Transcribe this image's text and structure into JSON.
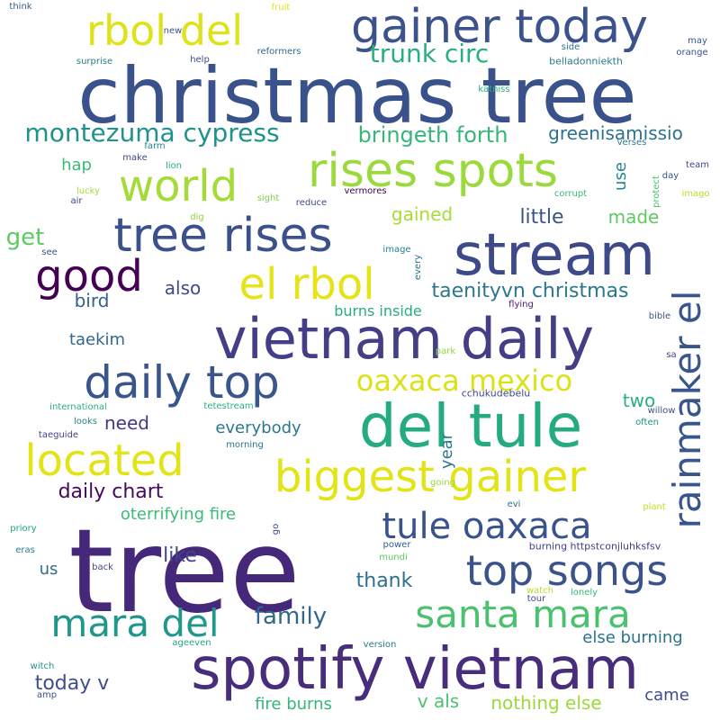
{
  "background_color": "#ffffff",
  "words": [
    {
      "text": "tree",
      "color": "#46287a"
    },
    {
      "text": "christmas tree",
      "color": "#3a528b"
    },
    {
      "text": "spotify vietnam",
      "color": "#472d7b"
    },
    {
      "text": "vietnam daily",
      "color": "#433e85"
    },
    {
      "text": "del tule",
      "color": "#25ab82"
    },
    {
      "text": "stream",
      "color": "#3e4989"
    },
    {
      "text": "gainer today",
      "color": "#3b528b"
    },
    {
      "text": "tree rises",
      "color": "#3b518b"
    },
    {
      "text": "rises spots",
      "color": "#9bd93c"
    },
    {
      "text": "daily top",
      "color": "#39558c"
    },
    {
      "text": "biggest gainer",
      "color": "#e2e418"
    },
    {
      "text": "top songs",
      "color": "#3a538b"
    },
    {
      "text": "located",
      "color": "#e2e418"
    },
    {
      "text": "santa mara",
      "color": "#4ac16d"
    },
    {
      "text": "mara del",
      "color": "#1f988b"
    },
    {
      "text": "rainmaker el",
      "color": "#39568c"
    },
    {
      "text": "tule oaxaca",
      "color": "#3a538b"
    },
    {
      "text": "world",
      "color": "#a5db36"
    },
    {
      "text": "good",
      "color": "#440154"
    },
    {
      "text": "el rbol",
      "color": "#e5e419"
    },
    {
      "text": "rbol del",
      "color": "#dde318"
    },
    {
      "text": "oaxaca mexico",
      "color": "#dae319"
    },
    {
      "text": "montezuma cypress",
      "color": "#20928c"
    },
    {
      "text": "taenityvn christmas",
      "color": "#2a788e"
    },
    {
      "text": "trunk circ",
      "color": "#29af7f"
    },
    {
      "text": "bringeth forth",
      "color": "#35b779"
    },
    {
      "text": "greenisamissio",
      "color": "#2d718e"
    },
    {
      "text": "daily chart",
      "color": "#46085c"
    },
    {
      "text": "family",
      "color": "#31668e"
    },
    {
      "text": "everybody",
      "color": "#2a788e"
    },
    {
      "text": "oterrifying fire",
      "color": "#3bbb75"
    },
    {
      "text": "today v",
      "color": "#3c4f8a"
    },
    {
      "text": "else burning",
      "color": "#2c728e"
    },
    {
      "text": "nothing else",
      "color": "#9dd93b"
    },
    {
      "text": "fire burns",
      "color": "#35b779"
    },
    {
      "text": "v als",
      "color": "#4ac16d"
    },
    {
      "text": "burns inside",
      "color": "#27ad81"
    },
    {
      "text": "little",
      "color": "#3b528b"
    },
    {
      "text": "gained",
      "color": "#a8db34"
    },
    {
      "text": "made",
      "color": "#5ec962"
    },
    {
      "text": "like",
      "color": "#414487"
    },
    {
      "text": "thank",
      "color": "#2e6f8e"
    },
    {
      "text": "need",
      "color": "#453882"
    },
    {
      "text": "get",
      "color": "#5ec962"
    },
    {
      "text": "also",
      "color": "#3e4a89"
    },
    {
      "text": "bird",
      "color": "#355f8d"
    },
    {
      "text": "taekim",
      "color": "#31688e"
    },
    {
      "text": "two",
      "color": "#29af7f"
    },
    {
      "text": "us",
      "color": "#2f6c8e"
    },
    {
      "text": "came",
      "color": "#3e4c8a"
    },
    {
      "text": "hap",
      "color": "#3bbb75"
    },
    {
      "text": "use",
      "color": "#25848e"
    },
    {
      "text": "year",
      "color": "#2a788e"
    },
    {
      "text": "burning httpstconjluhksfsv",
      "color": "#424086"
    },
    {
      "text": "cchukudebelu",
      "color": "#3e4989"
    },
    {
      "text": "belladonniekth",
      "color": "#2a788e"
    },
    {
      "text": "think",
      "color": "#355f8d"
    },
    {
      "text": "fruit",
      "color": "#e5e419"
    },
    {
      "text": "new",
      "color": "#3b528b"
    },
    {
      "text": "surprise",
      "color": "#277f8e"
    },
    {
      "text": "help",
      "color": "#3e4a89"
    },
    {
      "text": "reformers",
      "color": "#31688e"
    },
    {
      "text": "side",
      "color": "#2d718e"
    },
    {
      "text": "may",
      "color": "#3a538b"
    },
    {
      "text": "orange",
      "color": "#3b528b"
    },
    {
      "text": "katniss",
      "color": "#2ab07f"
    },
    {
      "text": "farm",
      "color": "#25848e"
    },
    {
      "text": "make",
      "color": "#3f4889"
    },
    {
      "text": "lion",
      "color": "#22a884"
    },
    {
      "text": "lucky",
      "color": "#a5db36"
    },
    {
      "text": "air",
      "color": "#414487"
    },
    {
      "text": "sight",
      "color": "#7ad151"
    },
    {
      "text": "reduce",
      "color": "#3e4a89"
    },
    {
      "text": "vermores",
      "color": "#440154"
    },
    {
      "text": "corrupt",
      "color": "#3bbb75"
    },
    {
      "text": "verses",
      "color": "#2a788e"
    },
    {
      "text": "day",
      "color": "#3b528b"
    },
    {
      "text": "team",
      "color": "#3e4989"
    },
    {
      "text": "imago",
      "color": "#b5de2b"
    },
    {
      "text": "protect",
      "color": "#4ac16d"
    },
    {
      "text": "dig",
      "color": "#90d743"
    },
    {
      "text": "see",
      "color": "#3a538b"
    },
    {
      "text": "image",
      "color": "#27808e"
    },
    {
      "text": "every",
      "color": "#2d718e"
    },
    {
      "text": "flying",
      "color": "#481b6d"
    },
    {
      "text": "park",
      "color": "#90d743"
    },
    {
      "text": "bible",
      "color": "#3b528b"
    },
    {
      "text": "sa",
      "color": "#414487"
    },
    {
      "text": "international",
      "color": "#2ab07f"
    },
    {
      "text": "tetestream",
      "color": "#29af7f"
    },
    {
      "text": "willow",
      "color": "#3b528b"
    },
    {
      "text": "often",
      "color": "#21918c"
    },
    {
      "text": "looks",
      "color": "#25848e"
    },
    {
      "text": "taeguide",
      "color": "#424086"
    },
    {
      "text": "morning",
      "color": "#2d718e"
    },
    {
      "text": "evi",
      "color": "#2e6e8e"
    },
    {
      "text": "going",
      "color": "#9bd93c"
    },
    {
      "text": "plant",
      "color": "#c2df23"
    },
    {
      "text": "priory",
      "color": "#20a386"
    },
    {
      "text": "go",
      "color": "#3e4989"
    },
    {
      "text": "eras",
      "color": "#2a788e"
    },
    {
      "text": "power",
      "color": "#355f8d"
    },
    {
      "text": "mundi",
      "color": "#5ec962"
    },
    {
      "text": "back",
      "color": "#3e4989"
    },
    {
      "text": "watch",
      "color": "#b5de2b"
    },
    {
      "text": "tour",
      "color": "#3e4989"
    },
    {
      "text": "lonely",
      "color": "#35b779"
    },
    {
      "text": "ageeven",
      "color": "#22a884"
    },
    {
      "text": "version",
      "color": "#2a788e"
    },
    {
      "text": "witch",
      "color": "#21918c"
    },
    {
      "text": "amp",
      "color": "#3b528b"
    }
  ]
}
